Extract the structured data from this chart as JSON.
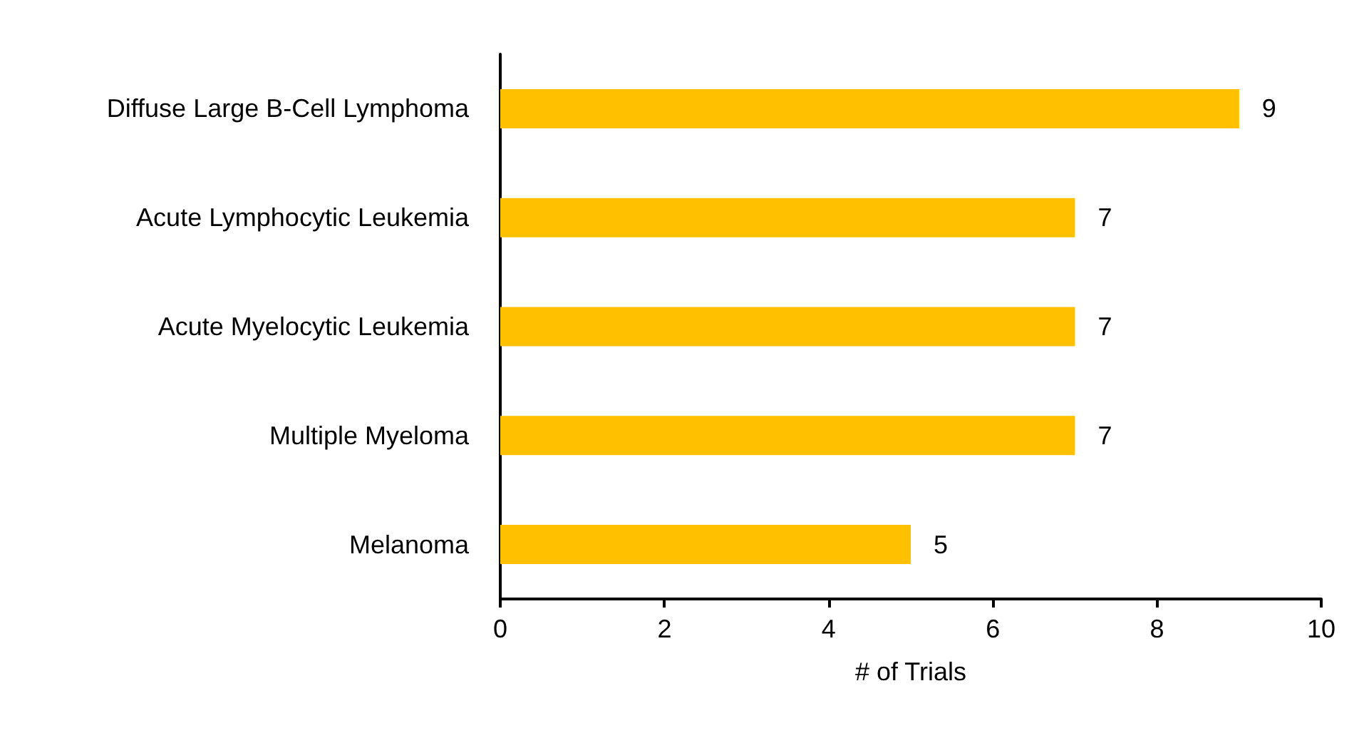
{
  "chart_data": {
    "type": "bar",
    "orientation": "horizontal",
    "xlabel": "# of Trials",
    "categories": [
      "Diffuse Large B-Cell Lymphoma",
      "Acute Lymphocytic Leukemia",
      "Acute Myelocytic Leukemia",
      "Multiple Myeloma",
      "Melanoma"
    ],
    "values": [
      9,
      7,
      7,
      7,
      5
    ],
    "color": "#ffc000",
    "xlim": [
      0,
      10
    ],
    "xticks": [
      0,
      2,
      4,
      6,
      8,
      10
    ],
    "grid": false,
    "data_labels": true
  }
}
